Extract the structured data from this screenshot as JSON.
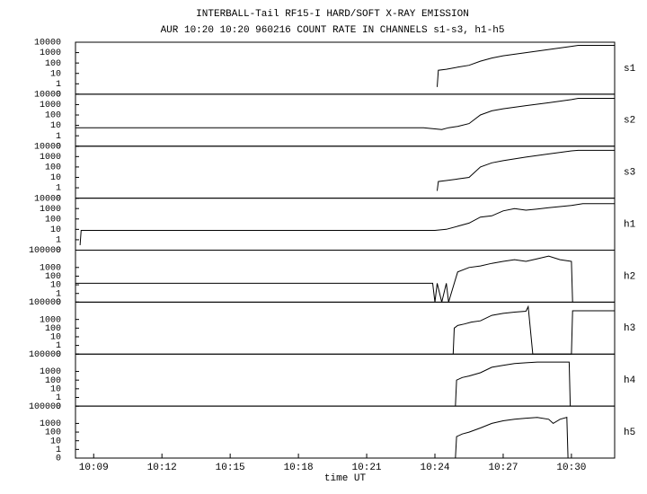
{
  "chart_data": [
    {
      "type": "line",
      "title": "INTERBALL-Tail RF15-I HARD/SOFT X-RAY EMISSION",
      "subtitle": "AUR 10:20 10:20 960216  COUNT RATE IN CHANNELS s1-s3, h1-h5",
      "log_y": true,
      "color": "#000000",
      "xlim": [
        608.2,
        631.9
      ],
      "ylim": [
        0.1,
        10000
      ],
      "yticks": [
        10000,
        1000,
        100,
        10,
        1,
        {
          "value": 0.1,
          "label": "0"
        }
      ],
      "x": [
        624.1,
        624.15,
        624.5,
        625,
        625.5,
        626,
        626.5,
        627,
        628,
        629,
        630,
        630.3,
        631.5,
        631.9
      ],
      "series": [
        {
          "name": "s1",
          "values": [
            0.5,
            20,
            25,
            40,
            60,
            150,
            300,
            500,
            1000,
            2000,
            4000,
            5000,
            5000,
            5000
          ]
        }
      ]
    },
    {
      "type": "line",
      "log_y": true,
      "color": "#000000",
      "xlim": [
        608.2,
        631.9
      ],
      "ylim": [
        0.1,
        10000
      ],
      "yticks": [
        10000,
        1000,
        100,
        10,
        1,
        {
          "value": 0.1,
          "label": "0"
        }
      ],
      "x": [
        608.2,
        610,
        612,
        614,
        616,
        618,
        620,
        622,
        623.5,
        624.3,
        624.6,
        625,
        625.5,
        626,
        626.5,
        627,
        628,
        629,
        630,
        630.3,
        631.9
      ],
      "series": [
        {
          "name": "s2",
          "values": [
            6,
            6,
            6,
            6,
            6,
            6,
            6,
            6,
            6,
            4,
            6,
            8,
            15,
            100,
            250,
            400,
            800,
            1500,
            3000,
            4000,
            4000
          ]
        }
      ]
    },
    {
      "type": "line",
      "log_y": true,
      "color": "#000000",
      "xlim": [
        608.2,
        631.9
      ],
      "ylim": [
        0.1,
        10000
      ],
      "yticks": [
        10000,
        1000,
        100,
        10,
        1,
        {
          "value": 0.1,
          "label": "0"
        }
      ],
      "x": [
        624.1,
        624.15,
        624.5,
        625,
        625.5,
        626,
        626.5,
        627,
        628,
        629,
        630,
        630.3,
        631.9
      ],
      "series": [
        {
          "name": "s3",
          "values": [
            0.5,
            4,
            5,
            7,
            10,
            100,
            250,
            400,
            900,
            1800,
            3500,
            4000,
            4000
          ]
        }
      ]
    },
    {
      "type": "line",
      "log_y": true,
      "color": "#000000",
      "xlim": [
        608.2,
        631.9
      ],
      "ylim": [
        0.1,
        10000
      ],
      "yticks": [
        10000,
        1000,
        100,
        10,
        1,
        {
          "value": 0.1,
          "label": "0"
        }
      ],
      "x": [
        608.4,
        608.45,
        610,
        612,
        614,
        616,
        618,
        620,
        622,
        624,
        624.5,
        625,
        625.5,
        626,
        626.5,
        627,
        627.5,
        628,
        628.5,
        629,
        630,
        630.5,
        631.9
      ],
      "series": [
        {
          "name": "h1",
          "values": [
            0.3,
            8,
            8,
            8,
            8,
            8,
            8,
            8,
            8,
            8,
            10,
            20,
            40,
            150,
            200,
            600,
            1000,
            700,
            900,
            1200,
            2000,
            3000,
            3000
          ]
        }
      ]
    },
    {
      "type": "line",
      "log_y": true,
      "color": "#000000",
      "xlim": [
        608.2,
        631.9
      ],
      "ylim": [
        0.1,
        100000
      ],
      "yticks": [
        100000,
        1000,
        100,
        10,
        1,
        {
          "value": 0.1,
          "label": "0"
        }
      ],
      "x": [
        608.2,
        623.9,
        624,
        624.1,
        624.3,
        624.5,
        624.6,
        625,
        625.5,
        626,
        626.5,
        627,
        627.5,
        628,
        628.5,
        629,
        629.5,
        630,
        630.05
      ],
      "series": [
        {
          "name": "h2",
          "values": [
            15,
            15,
            0.1,
            15,
            0.1,
            15,
            0.1,
            300,
            1000,
            1500,
            3000,
            5000,
            8000,
            5000,
            10000,
            20000,
            8000,
            5000,
            0.1
          ]
        }
      ]
    },
    {
      "type": "line",
      "log_y": true,
      "color": "#000000",
      "xlim": [
        608.2,
        631.9
      ],
      "ylim": [
        0.1,
        100000
      ],
      "yticks": [
        100000,
        1000,
        100,
        10,
        1,
        {
          "value": 0.1,
          "label": "0"
        }
      ],
      "x": [
        624.8,
        624.85,
        625,
        625.3,
        625.6,
        626,
        626.5,
        627,
        627.5,
        628,
        628.1,
        628.3,
        630,
        630.05,
        631.9
      ],
      "series": [
        {
          "name": "h3",
          "values": [
            0.1,
            100,
            200,
            300,
            500,
            700,
            3000,
            5000,
            7000,
            9000,
            30000,
            0.1,
            0.1,
            10000,
            10000
          ]
        }
      ]
    },
    {
      "type": "line",
      "log_y": true,
      "color": "#000000",
      "xlim": [
        608.2,
        631.9
      ],
      "ylim": [
        0.1,
        100000
      ],
      "yticks": [
        100000,
        1000,
        100,
        10,
        1,
        {
          "value": 0.1,
          "label": "0"
        }
      ],
      "x": [
        624.9,
        624.95,
        625.2,
        625.5,
        626,
        626.5,
        627,
        627.5,
        628,
        628.5,
        629,
        629.5,
        629.9,
        629.95
      ],
      "series": [
        {
          "name": "h4",
          "values": [
            0.1,
            100,
            200,
            300,
            700,
            3000,
            5000,
            8000,
            10000,
            12000,
            12000,
            12000,
            12000,
            0.1
          ]
        }
      ]
    },
    {
      "type": "line",
      "log_y": true,
      "color": "#000000",
      "xlim": [
        608.2,
        631.9
      ],
      "ylim": [
        0.1,
        100000
      ],
      "yticks": [
        100000,
        1000,
        100,
        10,
        1,
        {
          "value": 0.1,
          "label": "0"
        }
      ],
      "xlabel": "time UT",
      "xticks": [
        {
          "value": 609,
          "label": "10:09"
        },
        {
          "value": 612,
          "label": "10:12"
        },
        {
          "value": 615,
          "label": "10:15"
        },
        {
          "value": 618,
          "label": "10:18"
        },
        {
          "value": 621,
          "label": "10:21"
        },
        {
          "value": 624,
          "label": "10:24"
        },
        {
          "value": 627,
          "label": "10:27"
        },
        {
          "value": 630,
          "label": "10:30"
        }
      ],
      "x": [
        624.9,
        624.95,
        625.2,
        625.5,
        626,
        626.5,
        627,
        627.5,
        628,
        628.5,
        629,
        629.2,
        629.5,
        629.8,
        629.85
      ],
      "series": [
        {
          "name": "h5",
          "values": [
            0.1,
            30,
            60,
            100,
            300,
            1000,
            2000,
            3000,
            4000,
            5000,
            3000,
            1000,
            3000,
            5000,
            0.1
          ]
        }
      ]
    }
  ]
}
